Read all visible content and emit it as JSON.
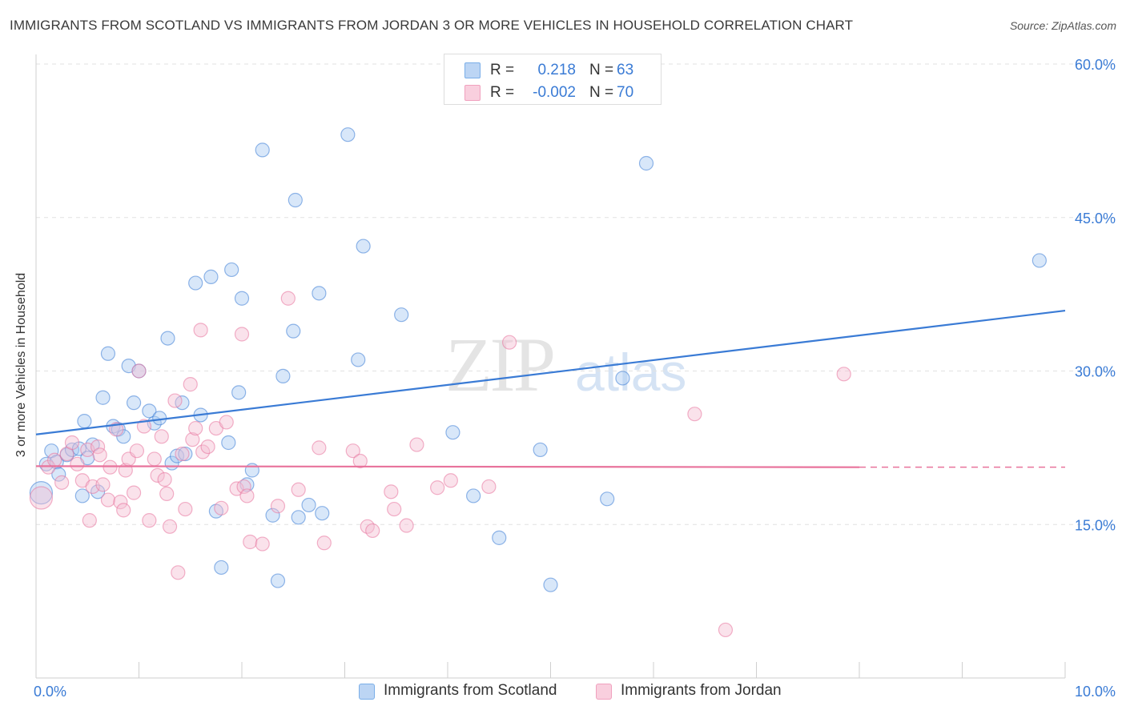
{
  "title": "IMMIGRANTS FROM SCOTLAND VS IMMIGRANTS FROM JORDAN 3 OR MORE VEHICLES IN HOUSEHOLD CORRELATION CHART",
  "source": "Source: ZipAtlas.com",
  "watermark": {
    "zip": "ZIP",
    "atlas": "atlas"
  },
  "legend_top": [
    {
      "r_label": "R =",
      "r_value": "0.218",
      "n_label": "N =",
      "n_value": "63",
      "color": "#7aaee8"
    },
    {
      "r_label": "R =",
      "r_value": "-0.002",
      "n_label": "N =",
      "n_value": "70",
      "color": "#f0a1be"
    }
  ],
  "legend_bottom": [
    {
      "label": "Immigrants from Scotland",
      "color": "#7aaee8"
    },
    {
      "label": "Immigrants from Jordan",
      "color": "#f0a1be"
    }
  ],
  "chart_data": {
    "type": "scatter",
    "title": "IMMIGRANTS FROM SCOTLAND VS IMMIGRANTS FROM JORDAN 3 OR MORE VEHICLES IN HOUSEHOLD CORRELATION CHART",
    "xlabel": "",
    "ylabel": "3 or more Vehicles in Household",
    "xlim": [
      0,
      10
    ],
    "ylim": [
      0,
      60
    ],
    "x_tick_labels": [
      "0.0%",
      "10.0%"
    ],
    "y_ticks": [
      15,
      30,
      45,
      60
    ],
    "y_tick_labels": [
      "15.0%",
      "30.0%",
      "45.0%",
      "60.0%"
    ],
    "grid": true,
    "legend_position": "top-center",
    "series": [
      {
        "name": "Immigrants from Scotland",
        "color": "#3a7bd5",
        "fill": "#a9c9f1",
        "trend": {
          "x": [
            0,
            10
          ],
          "y": [
            23.8,
            35.9
          ],
          "style": "solid"
        },
        "points": [
          [
            0.05,
            18.1
          ],
          [
            0.1,
            20.9
          ],
          [
            0.15,
            22.2
          ],
          [
            0.2,
            21.1
          ],
          [
            0.22,
            19.9
          ],
          [
            0.3,
            21.8
          ],
          [
            0.35,
            22.3
          ],
          [
            0.42,
            22.4
          ],
          [
            0.45,
            17.8
          ],
          [
            0.47,
            25.1
          ],
          [
            0.5,
            21.5
          ],
          [
            0.55,
            22.8
          ],
          [
            0.6,
            18.2
          ],
          [
            0.65,
            27.4
          ],
          [
            0.7,
            31.7
          ],
          [
            0.75,
            24.6
          ],
          [
            0.8,
            24.3
          ],
          [
            0.85,
            23.6
          ],
          [
            0.9,
            30.5
          ],
          [
            0.95,
            26.9
          ],
          [
            1.0,
            30.0
          ],
          [
            1.1,
            26.1
          ],
          [
            1.15,
            24.9
          ],
          [
            1.2,
            25.4
          ],
          [
            1.28,
            33.2
          ],
          [
            1.32,
            21.0
          ],
          [
            1.37,
            21.7
          ],
          [
            1.42,
            26.9
          ],
          [
            1.45,
            21.9
          ],
          [
            1.55,
            38.6
          ],
          [
            1.6,
            25.7
          ],
          [
            1.7,
            39.2
          ],
          [
            1.75,
            16.3
          ],
          [
            1.8,
            10.8
          ],
          [
            1.87,
            23.0
          ],
          [
            1.9,
            39.9
          ],
          [
            1.97,
            27.9
          ],
          [
            2.0,
            37.1
          ],
          [
            2.05,
            18.9
          ],
          [
            2.1,
            20.3
          ],
          [
            2.2,
            51.6
          ],
          [
            2.3,
            15.9
          ],
          [
            2.35,
            9.5
          ],
          [
            2.4,
            29.5
          ],
          [
            2.5,
            33.9
          ],
          [
            2.52,
            46.7
          ],
          [
            2.55,
            15.7
          ],
          [
            2.65,
            16.9
          ],
          [
            2.75,
            37.6
          ],
          [
            2.78,
            16.1
          ],
          [
            3.03,
            53.1
          ],
          [
            3.13,
            31.1
          ],
          [
            3.18,
            42.2
          ],
          [
            3.55,
            35.5
          ],
          [
            4.05,
            24.0
          ],
          [
            4.25,
            17.8
          ],
          [
            4.5,
            13.7
          ],
          [
            4.9,
            22.3
          ],
          [
            5.0,
            9.1
          ],
          [
            5.55,
            17.5
          ],
          [
            5.7,
            29.3
          ],
          [
            5.93,
            50.3
          ],
          [
            9.75,
            40.8
          ]
        ]
      },
      {
        "name": "Immigrants from Jordan",
        "color": "#e8739c",
        "fill": "#f5bfd2",
        "trend": {
          "x": [
            0,
            8.0
          ],
          "y": [
            20.7,
            20.6
          ],
          "style": "solid",
          "dashed_to_x": 10
        },
        "points": [
          [
            0.05,
            17.6
          ],
          [
            0.12,
            20.6
          ],
          [
            0.18,
            21.3
          ],
          [
            0.25,
            19.1
          ],
          [
            0.3,
            21.9
          ],
          [
            0.35,
            23.0
          ],
          [
            0.4,
            20.9
          ],
          [
            0.45,
            19.3
          ],
          [
            0.5,
            22.3
          ],
          [
            0.52,
            15.4
          ],
          [
            0.55,
            18.7
          ],
          [
            0.6,
            22.6
          ],
          [
            0.62,
            21.8
          ],
          [
            0.65,
            18.9
          ],
          [
            0.7,
            17.4
          ],
          [
            0.72,
            20.6
          ],
          [
            0.78,
            24.3
          ],
          [
            0.82,
            17.2
          ],
          [
            0.85,
            16.4
          ],
          [
            0.87,
            20.3
          ],
          [
            0.9,
            21.4
          ],
          [
            0.95,
            18.1
          ],
          [
            0.98,
            22.2
          ],
          [
            1.0,
            30.0
          ],
          [
            1.05,
            24.6
          ],
          [
            1.1,
            15.4
          ],
          [
            1.15,
            21.4
          ],
          [
            1.18,
            19.8
          ],
          [
            1.22,
            23.6
          ],
          [
            1.25,
            19.4
          ],
          [
            1.27,
            18.0
          ],
          [
            1.3,
            14.8
          ],
          [
            1.35,
            27.1
          ],
          [
            1.38,
            10.3
          ],
          [
            1.42,
            21.9
          ],
          [
            1.45,
            16.5
          ],
          [
            1.5,
            28.7
          ],
          [
            1.52,
            23.3
          ],
          [
            1.55,
            24.4
          ],
          [
            1.6,
            34.0
          ],
          [
            1.62,
            22.1
          ],
          [
            1.67,
            22.6
          ],
          [
            1.75,
            24.4
          ],
          [
            1.8,
            16.6
          ],
          [
            1.85,
            25.0
          ],
          [
            1.95,
            18.5
          ],
          [
            2.0,
            33.6
          ],
          [
            2.02,
            18.7
          ],
          [
            2.05,
            17.8
          ],
          [
            2.08,
            13.3
          ],
          [
            2.2,
            13.1
          ],
          [
            2.35,
            16.8
          ],
          [
            2.45,
            37.1
          ],
          [
            2.55,
            18.4
          ],
          [
            2.75,
            22.5
          ],
          [
            2.8,
            13.2
          ],
          [
            3.08,
            22.2
          ],
          [
            3.15,
            21.2
          ],
          [
            3.22,
            14.8
          ],
          [
            3.27,
            14.4
          ],
          [
            3.45,
            18.2
          ],
          [
            3.48,
            16.5
          ],
          [
            3.6,
            14.9
          ],
          [
            3.7,
            22.8
          ],
          [
            3.9,
            18.6
          ],
          [
            4.03,
            19.3
          ],
          [
            4.4,
            18.7
          ],
          [
            4.6,
            32.8
          ],
          [
            6.4,
            25.8
          ],
          [
            6.7,
            4.7
          ],
          [
            7.85,
            29.7
          ]
        ]
      }
    ]
  }
}
